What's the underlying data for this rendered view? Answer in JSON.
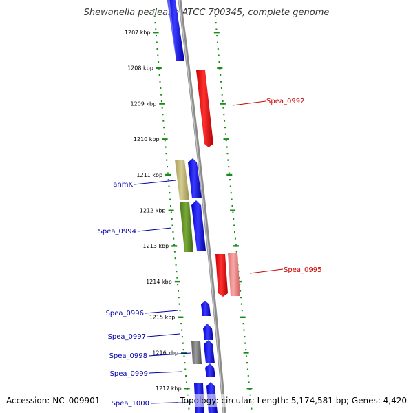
{
  "title": "Shewanella pealeana ATCC 700345, complete genome",
  "footer": {
    "accession": "Accession: NC_009901",
    "topology": "Topology: circular; Length: 5,174,581 bp; Genes: 4,420"
  },
  "colors": {
    "forward_gene": "#0000ff",
    "reverse_gene": "#ff0000",
    "reverse_gene_light": "#f08080",
    "olive_gene": "#b8b070",
    "green_gene": "#5a8a20",
    "gray_gene": "#707070",
    "backbone": "#909090",
    "tick_dots": "#1a8a1a",
    "forward_label": "#0000aa",
    "reverse_label": "#cc0000"
  },
  "ticks": [
    "1207 kbp",
    "1208 kbp",
    "1209 kbp",
    "1210 kbp",
    "1211 kbp",
    "1212 kbp",
    "1213 kbp",
    "1214 kbp",
    "1215 kbp",
    "1216 kbp",
    "1217 kbp"
  ],
  "labels": {
    "spea_0992": "Spea_0992",
    "anmk": "anmK",
    "spea_0994": "Spea_0994",
    "spea_0995": "Spea_0995",
    "spea_0996": "Spea_0996",
    "spea_0997": "Spea_0997",
    "spea_0998": "Spea_0998",
    "spea_0999": "Spea_0999",
    "spea_1000": "Spea_1000"
  }
}
